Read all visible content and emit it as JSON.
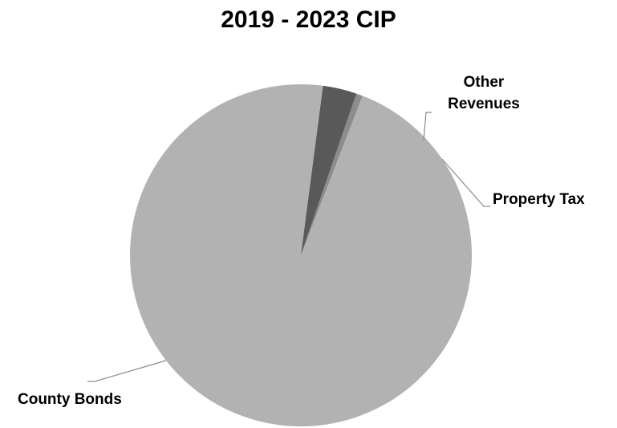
{
  "chart_data": {
    "type": "pie",
    "title": "2019 - 2023 CIP",
    "slices": [
      {
        "label": "County Bonds",
        "value": 96.2,
        "color": "#b2b2b2"
      },
      {
        "label": "Property Tax",
        "value": 3.2,
        "color": "#595959"
      },
      {
        "label": "Other Revenues",
        "value": 0.6,
        "color": "#8c8c8c"
      }
    ],
    "label_lines": [
      "Other",
      "Revenues"
    ],
    "legend": "none"
  }
}
